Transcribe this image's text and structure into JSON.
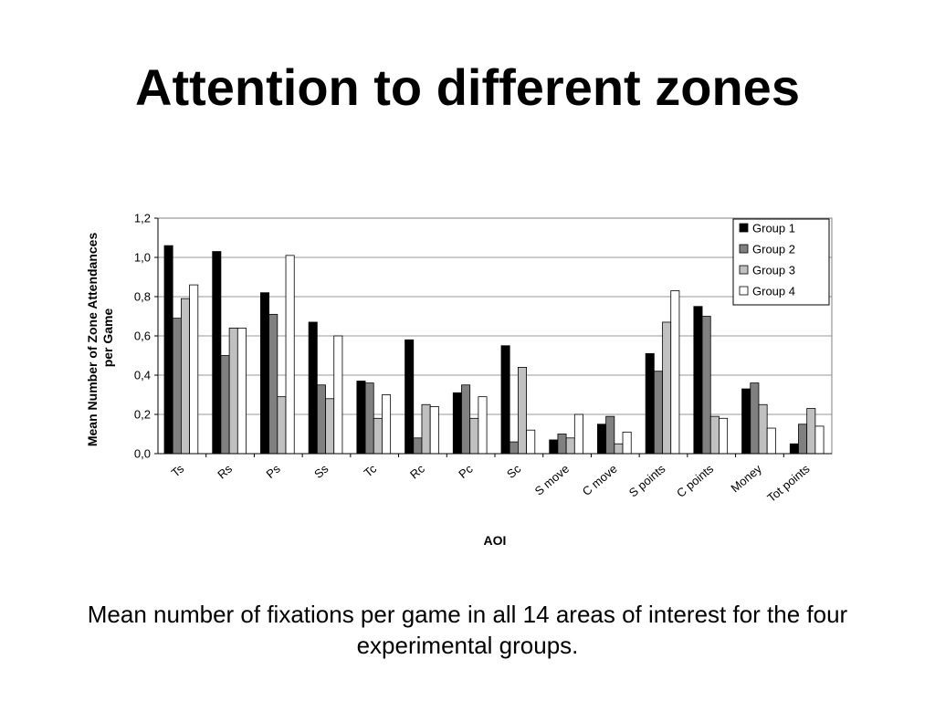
{
  "slide": {
    "title": "Attention to different zones",
    "caption": "Mean number of fixations per game in all 14 areas of interest for the four experimental groups."
  },
  "chart_data": {
    "type": "bar",
    "xlabel": "AOI",
    "ylabel_lines": [
      "Mean Number of Zone Attendances",
      "per Game"
    ],
    "ylim": [
      0,
      1.2
    ],
    "ytick_labels": [
      "0,0",
      "0,2",
      "0,4",
      "0,6",
      "0,8",
      "1,0",
      "1,2"
    ],
    "grid": true,
    "legend_position": "top-right",
    "categories": [
      "Ts",
      "Rs",
      "Ps",
      "Ss",
      "Tc",
      "Rc",
      "Pc",
      "Sc",
      "S move",
      "C move",
      "S points",
      "C points",
      "Money",
      "Tot points"
    ],
    "series": [
      {
        "name": "Group 1",
        "color": "#000000",
        "values": [
          1.06,
          1.03,
          0.82,
          0.67,
          0.37,
          0.58,
          0.31,
          0.55,
          0.07,
          0.15,
          0.51,
          0.75,
          0.33,
          0.05
        ]
      },
      {
        "name": "Group 2",
        "color": "#808080",
        "values": [
          0.69,
          0.5,
          0.71,
          0.35,
          0.36,
          0.08,
          0.35,
          0.06,
          0.1,
          0.19,
          0.42,
          0.7,
          0.36,
          0.15
        ]
      },
      {
        "name": "Group 3",
        "color": "#c0c0c0",
        "values": [
          0.79,
          0.64,
          0.29,
          0.28,
          0.18,
          0.25,
          0.18,
          0.44,
          0.08,
          0.05,
          0.67,
          0.19,
          0.25,
          0.23
        ]
      },
      {
        "name": "Group 4",
        "color": "#ffffff",
        "values": [
          0.86,
          0.64,
          1.01,
          0.6,
          0.3,
          0.24,
          0.29,
          0.12,
          0.2,
          0.11,
          0.83,
          0.18,
          0.13,
          0.14
        ]
      }
    ]
  }
}
